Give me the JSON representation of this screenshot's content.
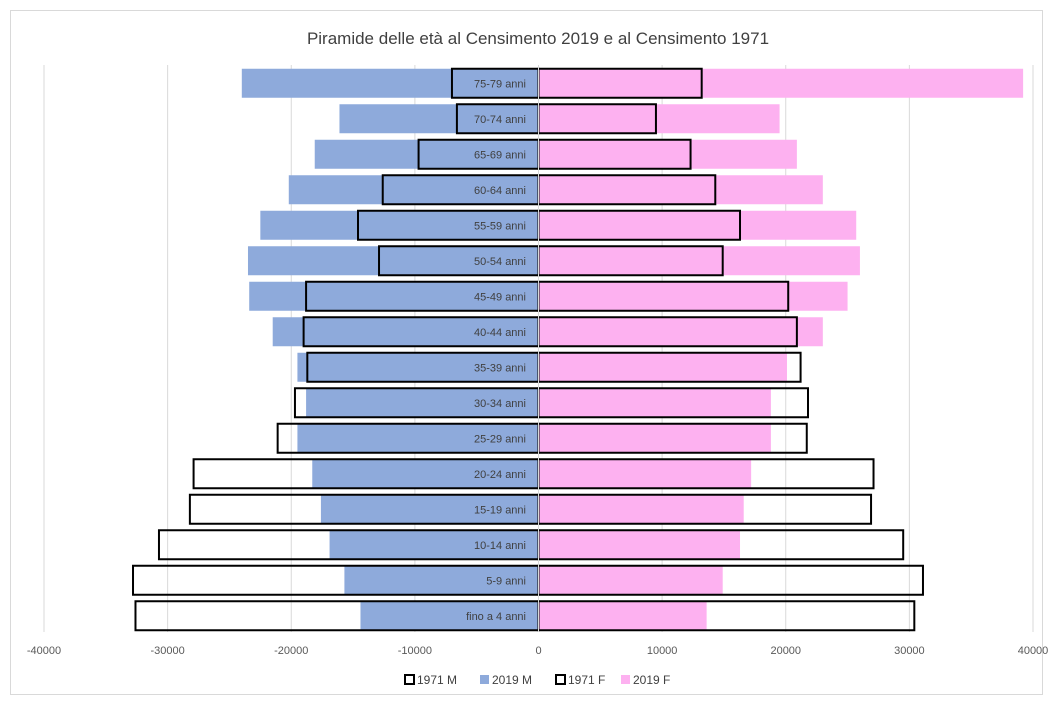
{
  "chart_data": {
    "type": "bar",
    "orientation": "horizontal",
    "title": "Piramide delle età al Censimento 2019 e al Censimento 1971",
    "categories": [
      "fino a 4 anni",
      "5-9 anni",
      "10-14 anni",
      "15-19 anni",
      "20-24 anni",
      "25-29 anni",
      "30-34 anni",
      "35-39 anni",
      "40-44 anni",
      "45-49 anni",
      "50-54 anni",
      "55-59 anni",
      "60-64 anni",
      "65-69 anni",
      "70-74 anni",
      "75-79 anni"
    ],
    "xlim": [
      -40000,
      40000
    ],
    "xticks": [
      -40000,
      -30000,
      -20000,
      -10000,
      0,
      10000,
      20000,
      30000,
      40000
    ],
    "grid": true,
    "legend_position": "bottom",
    "series": [
      {
        "name": "1971 M",
        "color": "#ffffff",
        "outline": "#000000",
        "values": [
          -32600,
          -32800,
          -30700,
          -28200,
          -27900,
          -21100,
          -19700,
          -18700,
          -19000,
          -18800,
          -12900,
          -14600,
          -12600,
          -9700,
          -6600,
          -7000
        ]
      },
      {
        "name": "2019 M",
        "color": "#8eaadb",
        "values": [
          -14400,
          -15700,
          -16900,
          -17600,
          -18300,
          -19500,
          -18800,
          -19500,
          -21500,
          -23400,
          -23500,
          -22500,
          -20200,
          -18100,
          -16100,
          -24000
        ]
      },
      {
        "name": "1971 F",
        "color": "#ffffff",
        "outline": "#000000",
        "values": [
          30400,
          31100,
          29500,
          26900,
          27100,
          21700,
          21800,
          21200,
          20900,
          20200,
          14900,
          16300,
          14300,
          12300,
          9500,
          13200
        ]
      },
      {
        "name": "2019 F",
        "color": "#fdb1f0",
        "values": [
          13600,
          14900,
          16300,
          16600,
          17200,
          18800,
          18800,
          20100,
          23000,
          25000,
          26000,
          25700,
          23000,
          20900,
          19500,
          39200
        ]
      }
    ]
  }
}
